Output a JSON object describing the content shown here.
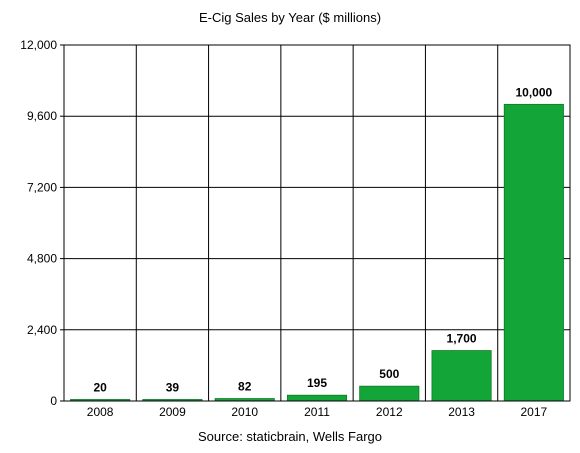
{
  "chart_data": {
    "type": "bar",
    "title": "E-Cig Sales by Year ($ millions)",
    "categories": [
      "2008",
      "2009",
      "2010",
      "2011",
      "2012",
      "2013",
      "2017"
    ],
    "values": [
      20,
      39,
      82,
      195,
      500,
      1700,
      10000
    ],
    "data_labels": [
      "20",
      "39",
      "82",
      "195",
      "500",
      "1,700",
      "10,000"
    ],
    "yticks": [
      0,
      2400,
      4800,
      7200,
      9600,
      12000
    ],
    "ytick_labels": [
      "0",
      "2,400",
      "4,800",
      "7,200",
      "9,600",
      "12,000"
    ],
    "ylim": [
      0,
      12000
    ],
    "grid": true,
    "legend": false,
    "bar_color": "#13a538",
    "bar_edge_color": "#0b7a26",
    "source": "Source: staticbrain, Wells Fargo"
  }
}
